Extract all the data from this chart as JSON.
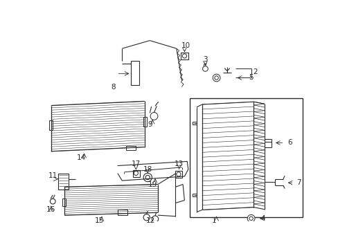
{
  "bg_color": "#ffffff",
  "lc": "#2a2a2a",
  "fig_width": 4.89,
  "fig_height": 3.6,
  "dpi": 100
}
